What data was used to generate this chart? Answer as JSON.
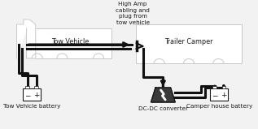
{
  "bg_color": "#f2f2f2",
  "line_color": "#1a1a1a",
  "thick_line_color": "#111111",
  "vehicle_color": "#c8c8c8",
  "box_fill": "#ffffff",
  "conv_fill": "#888888",
  "title_fontsize": 6.5,
  "label_fontsize": 5.8,
  "annotation_fontsize": 5.2,
  "tow_vehicle_label": "Tow Vehicle",
  "trailer_label": "Trailer Camper",
  "tow_battery_label": "Tow Vehicle battery",
  "dcdc_label": "DC-DC converter",
  "camper_battery_label": "Camper house battery",
  "high_amp_label": "High Amp\ncabling and\nplug from\ntow vehicle"
}
